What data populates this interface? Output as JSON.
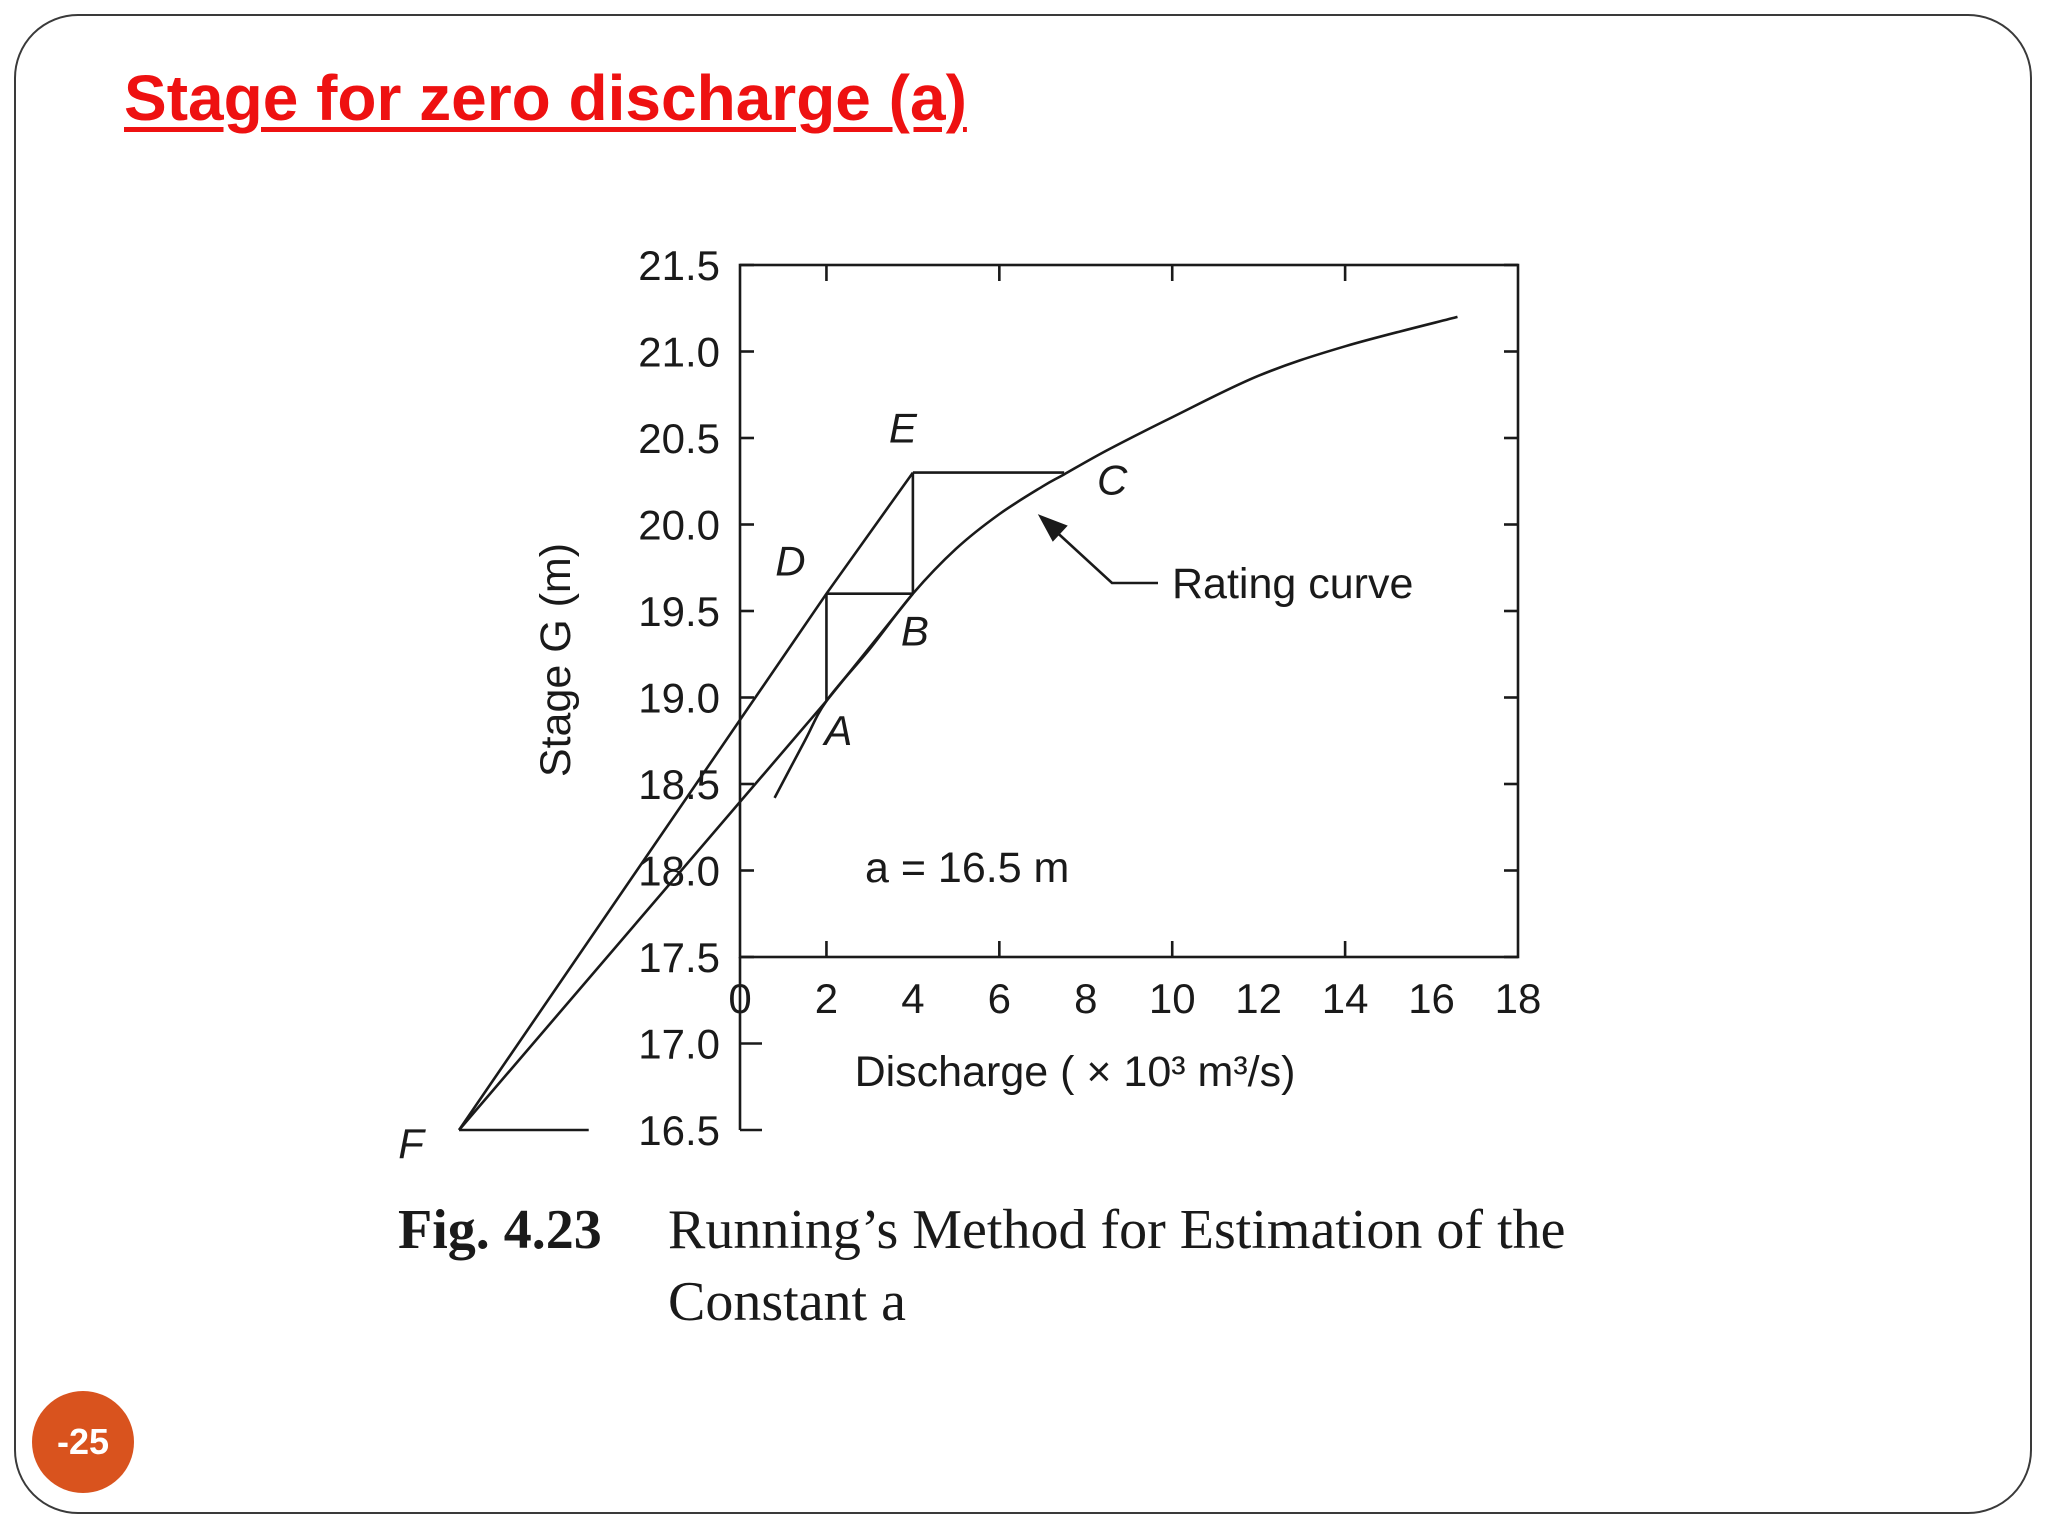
{
  "slide": {
    "title": "Stage for zero discharge (a)",
    "page_number": "-25",
    "title_color": "#ee1111",
    "badge_color": "#d9531e"
  },
  "caption": {
    "number": "Fig. 4.23",
    "text": "Running’s Method for Estimation of the Constant a"
  },
  "chart_data": {
    "type": "line",
    "xlabel": "Discharge ( × 10³ m³/s)",
    "ylabel": "Stage G (m)",
    "xlim": [
      0,
      18
    ],
    "ylim": [
      16.5,
      21.5
    ],
    "x_ticks": [
      "0",
      "2",
      "4",
      "6",
      "8",
      "10",
      "12",
      "14",
      "16",
      "18"
    ],
    "y_ticks": [
      "16.5",
      "17.0",
      "17.5",
      "18.0",
      "18.5",
      "19.0",
      "19.5",
      "20.0",
      "20.5",
      "21.0",
      "21.5"
    ],
    "x_tick_values": [
      0,
      2,
      4,
      6,
      8,
      10,
      12,
      14,
      16,
      18
    ],
    "y_tick_values": [
      16.5,
      17.0,
      17.5,
      18.0,
      18.5,
      19.0,
      19.5,
      20.0,
      20.5,
      21.0,
      21.5
    ],
    "grid": false,
    "annotation": "a = 16.5 m",
    "rating_curve_label": "Rating curve",
    "series": [
      {
        "name": "Rating curve",
        "x": [
          0.8,
          1.5,
          2.0,
          3.0,
          4.0,
          5.0,
          6.0,
          7.0,
          7.5,
          8.5,
          10.0,
          12.0,
          14.0,
          16.6
        ],
        "y": [
          18.42,
          18.75,
          18.98,
          19.28,
          19.6,
          19.86,
          20.06,
          20.22,
          20.29,
          20.43,
          20.62,
          20.86,
          21.03,
          21.2
        ]
      }
    ],
    "construction_lines": {
      "vertical_AD": {
        "x": 2.0,
        "y": [
          18.98,
          19.6
        ]
      },
      "horizontal_DB": {
        "x": [
          2.0,
          4.0
        ],
        "y": 19.6
      },
      "vertical_BE": {
        "x": 4.0,
        "y": [
          19.6,
          20.3
        ]
      },
      "horizontal_EC": {
        "x": [
          4.0,
          7.5
        ],
        "y": 20.3
      },
      "line_FDE": {
        "x": [
          -6.5,
          2.0,
          4.0
        ],
        "y": [
          16.5,
          19.6,
          20.3
        ]
      },
      "line_FAB": {
        "x": [
          -6.5,
          2.0,
          4.0
        ],
        "y": [
          16.5,
          18.98,
          19.6
        ]
      },
      "base_line_F": {
        "x": [
          -6.5,
          -3.5
        ],
        "y": 16.5
      }
    },
    "points": [
      {
        "label": "A",
        "x": 2.0,
        "y": 18.98
      },
      {
        "label": "B",
        "x": 4.0,
        "y": 19.6
      },
      {
        "label": "C",
        "x": 7.5,
        "y": 20.3
      },
      {
        "label": "D",
        "x": 2.0,
        "y": 19.6
      },
      {
        "label": "E",
        "x": 4.0,
        "y": 20.3
      },
      {
        "label": "F",
        "x": -6.5,
        "y": 16.5
      }
    ]
  }
}
